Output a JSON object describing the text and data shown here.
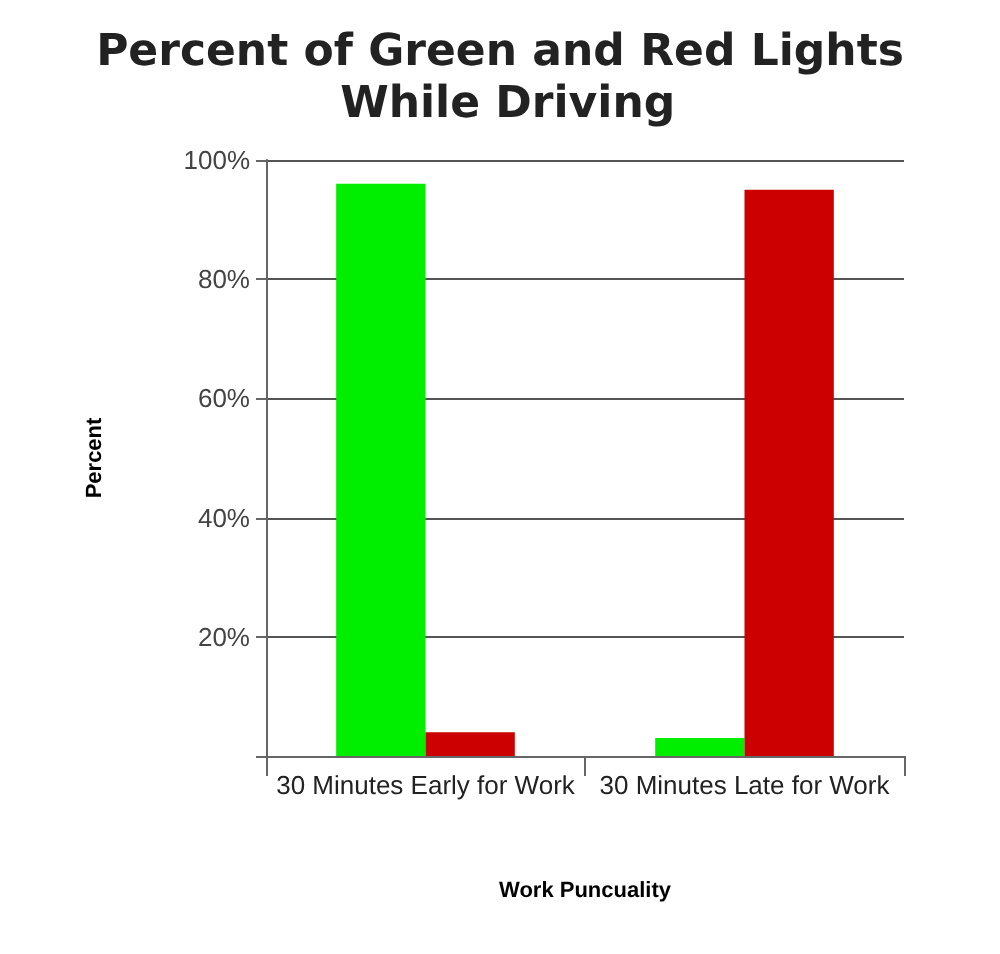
{
  "chart_data": {
    "type": "bar",
    "title": "Percent of Green and Red Lights While Driving",
    "xlabel": "Work Puncuality",
    "ylabel": "Percent",
    "categories": [
      "30 Minutes Early for Work",
      "30 Minutes Late for Work"
    ],
    "series": [
      {
        "color": "#00ee00",
        "values": [
          96,
          3
        ]
      },
      {
        "color": "#cc0000",
        "values": [
          4,
          95
        ]
      }
    ],
    "ylim": [
      0,
      100
    ],
    "yticks": [
      {
        "value": 0,
        "label": null
      },
      {
        "value": 20,
        "label": "20%"
      },
      {
        "value": 40,
        "label": "40%"
      },
      {
        "value": 60,
        "label": "60%"
      },
      {
        "value": 80,
        "label": "80%"
      },
      {
        "value": 100,
        "label": "100%"
      }
    ],
    "grid": "y"
  }
}
